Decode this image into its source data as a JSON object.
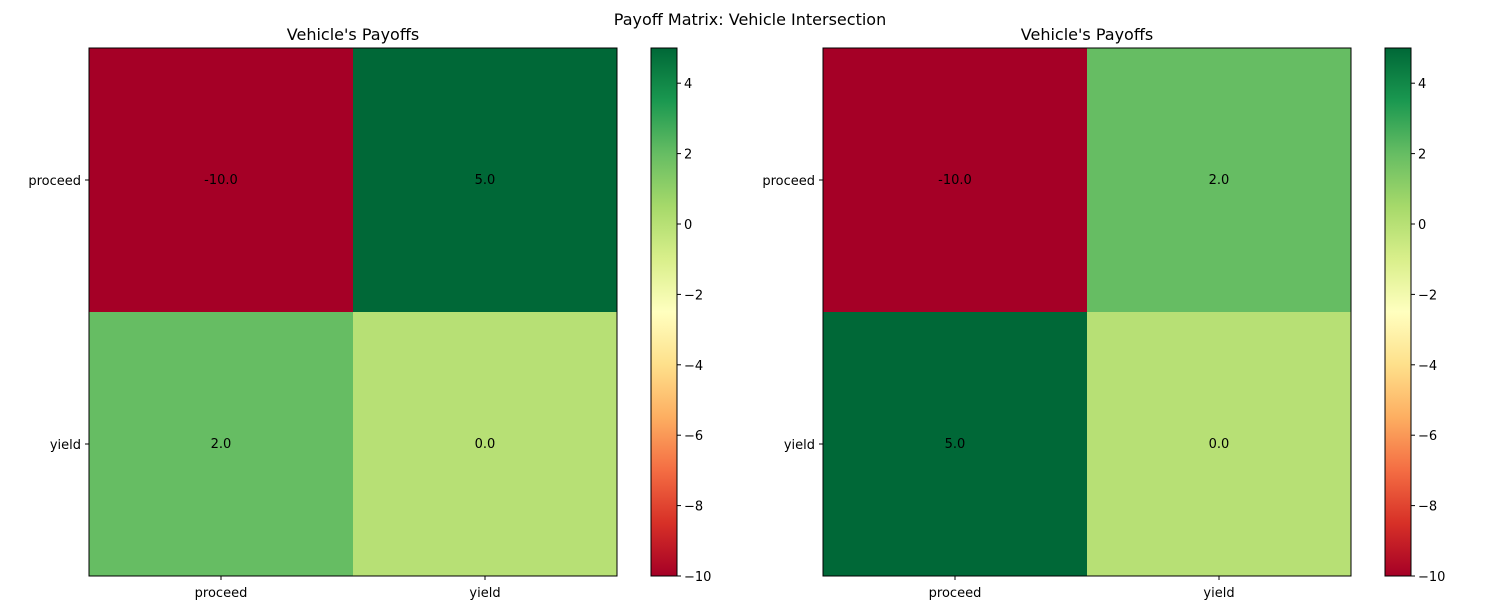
{
  "figure": {
    "suptitle": "Payoff Matrix: Vehicle Intersection",
    "colormap": "RdYlGn",
    "colormap_stops": [
      "#a50026",
      "#d73027",
      "#f46d43",
      "#fdae61",
      "#fee08b",
      "#ffffbf",
      "#d9ef8b",
      "#a6d96a",
      "#66bd63",
      "#1a9850",
      "#006837"
    ]
  },
  "chart_data": [
    {
      "type": "heatmap",
      "title": "Vehicle's Payoffs",
      "row_labels": [
        "proceed",
        "yield"
      ],
      "col_labels": [
        "proceed",
        "yield"
      ],
      "values": [
        [
          -10.0,
          5.0
        ],
        [
          2.0,
          0.0
        ]
      ],
      "cell_labels": [
        [
          "-10.0",
          "5.0"
        ],
        [
          "2.0",
          "0.0"
        ]
      ],
      "colorbar": {
        "range": [
          -10,
          5
        ],
        "ticks": [
          -10,
          -8,
          -6,
          -4,
          -2,
          0,
          2,
          4
        ],
        "tick_labels": [
          "−10",
          "−8",
          "−6",
          "−4",
          "−2",
          "0",
          "2",
          "4"
        ]
      }
    },
    {
      "type": "heatmap",
      "title": "Vehicle's Payoffs",
      "row_labels": [
        "proceed",
        "yield"
      ],
      "col_labels": [
        "proceed",
        "yield"
      ],
      "values": [
        [
          -10.0,
          2.0
        ],
        [
          5.0,
          0.0
        ]
      ],
      "cell_labels": [
        [
          "-10.0",
          "2.0"
        ],
        [
          "5.0",
          "0.0"
        ]
      ],
      "colorbar": {
        "range": [
          -10,
          5
        ],
        "ticks": [
          -10,
          -8,
          -6,
          -4,
          -2,
          0,
          2,
          4
        ],
        "tick_labels": [
          "−10",
          "−8",
          "−6",
          "−4",
          "−2",
          "0",
          "2",
          "4"
        ]
      }
    }
  ]
}
